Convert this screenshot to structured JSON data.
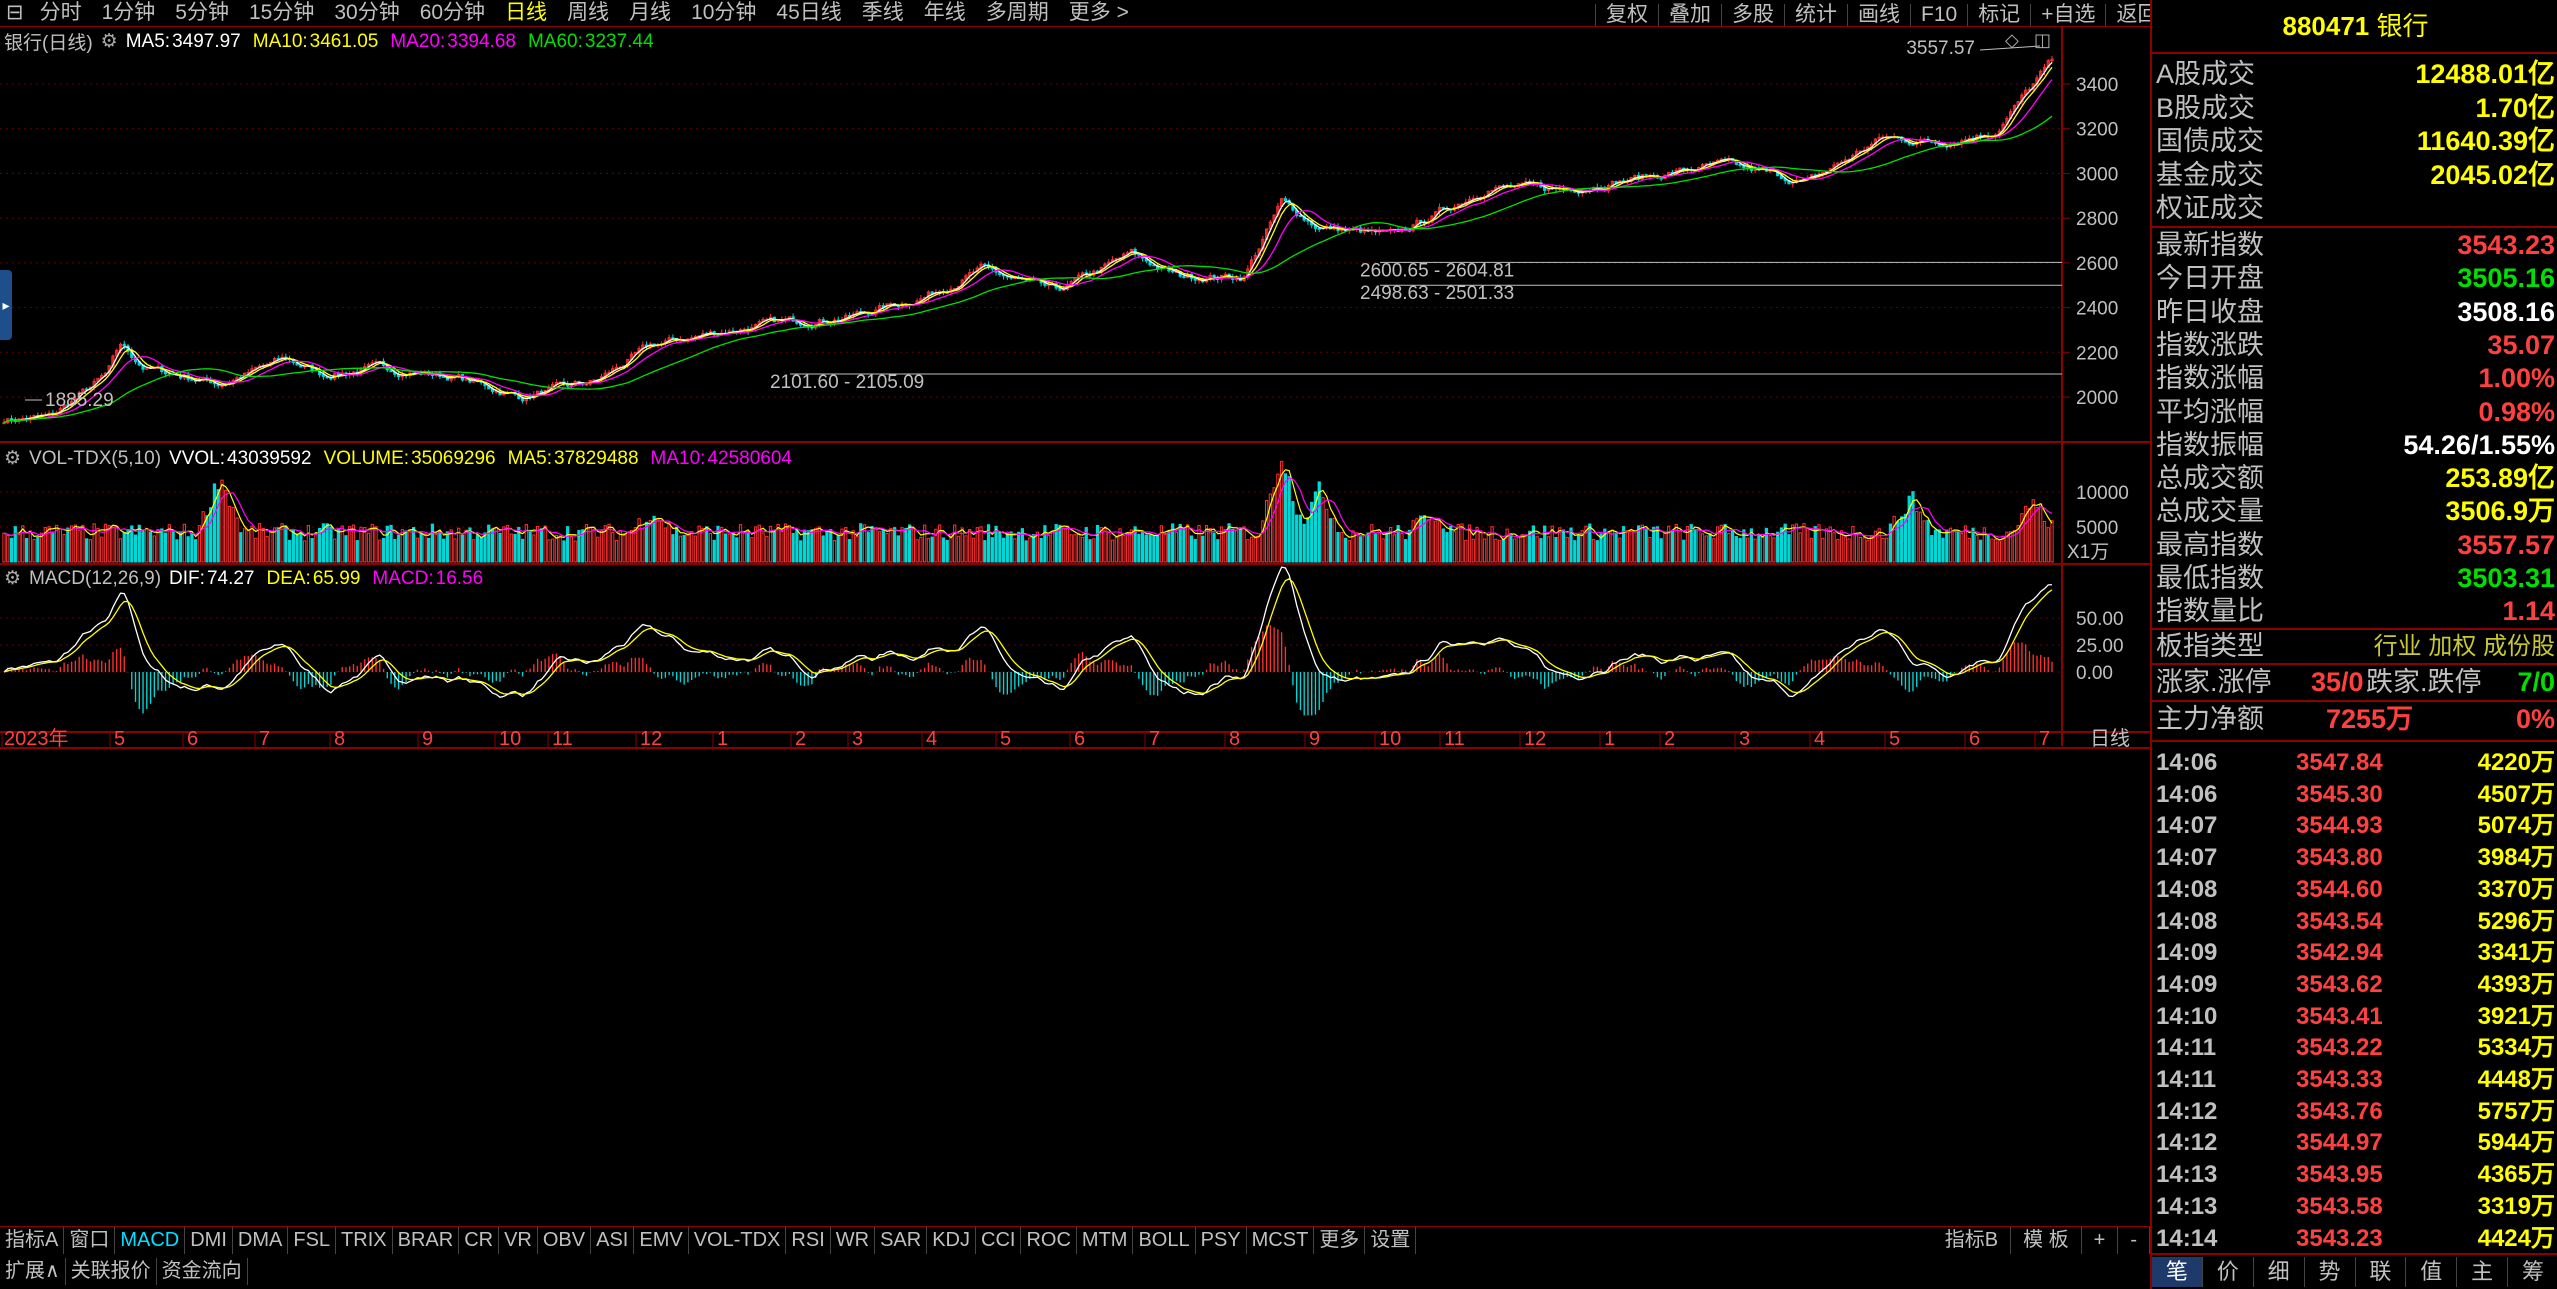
{
  "toolbar": {
    "timeframes": [
      "分时",
      "1分钟",
      "5分钟",
      "15分钟",
      "30分钟",
      "60分钟",
      "日线",
      "周线",
      "月线",
      "10分钟",
      "45日线",
      "季线",
      "年线",
      "多周期",
      "更多 >"
    ],
    "active_index": 6,
    "right_buttons": [
      "复权",
      "叠加",
      "多股",
      "统计",
      "画线",
      "F10",
      "标记",
      "+自选",
      "返回"
    ]
  },
  "main_chart": {
    "title": "银行(日线)",
    "ma": [
      {
        "label": "MA5:",
        "value": "3497.97",
        "color": "#ffffff"
      },
      {
        "label": "MA10:",
        "value": "3461.05",
        "color": "#ffff00"
      },
      {
        "label": "MA20:",
        "value": "3394.68",
        "color": "#ff00ff"
      },
      {
        "label": "MA60:",
        "value": "3237.44",
        "color": "#00e000"
      }
    ],
    "y_ticks": [
      "3400",
      "3200",
      "3000",
      "2800",
      "2600",
      "2400",
      "2200",
      "2000"
    ],
    "y_values": [
      3400,
      3200,
      3000,
      2800,
      2600,
      2400,
      2200,
      2000
    ],
    "high_label": "3557.57",
    "low_label": "1885.29",
    "zones": [
      "2600.65 - 2604.81",
      "2498.63 - 2501.33",
      "2101.60 - 2105.09"
    ]
  },
  "vol_chart": {
    "title": "VOL-TDX(5,10)",
    "items": [
      {
        "label": "VVOL:",
        "value": "43039592",
        "color": "#ffffff"
      },
      {
        "label": "VOLUME:",
        "value": "35069296",
        "color": "#ffff00"
      },
      {
        "label": "MA5:",
        "value": "37829488",
        "color": "#ffff00"
      },
      {
        "label": "MA10:",
        "value": "42580604",
        "color": "#ff00ff"
      }
    ],
    "y_ticks": [
      "10000",
      "5000"
    ],
    "unit": "X1万"
  },
  "macd_chart": {
    "title": "MACD(12,26,9)",
    "items": [
      {
        "label": "DIF:",
        "value": "74.27",
        "color": "#ffffff"
      },
      {
        "label": "DEA:",
        "value": "65.99",
        "color": "#ffff00"
      },
      {
        "label": "MACD:",
        "value": "16.56",
        "color": "#ff00ff"
      }
    ],
    "y_ticks": [
      "50.00",
      "25.00",
      "0.00"
    ]
  },
  "x_axis": {
    "labels": [
      "2023年",
      "5",
      "6",
      "7",
      "8",
      "9",
      "10",
      "11",
      "12",
      "1",
      "2",
      "3",
      "4",
      "5",
      "6",
      "7",
      "8",
      "9",
      "10",
      "11",
      "12",
      "1",
      "2",
      "3",
      "4",
      "5",
      "6",
      "7"
    ],
    "period": "日线"
  },
  "indicator_tabs": [
    "指标A",
    "窗口",
    "MACD",
    "DMI",
    "DMA",
    "FSL",
    "TRIX",
    "BRAR",
    "CR",
    "VR",
    "OBV",
    "ASI",
    "EMV",
    "VOL-TDX",
    "RSI",
    "WR",
    "SAR",
    "KDJ",
    "CCI",
    "ROC",
    "MTM",
    "BOLL",
    "PSY",
    "MCST",
    "更多",
    "设置"
  ],
  "indicator_active": 2,
  "indicator_right": [
    "指标B",
    "模 板",
    "+",
    "-"
  ],
  "ext_bar": [
    "扩展∧",
    "关联报价",
    "资金流向"
  ],
  "panel": {
    "code": "880471",
    "name": "银行",
    "turnover": [
      {
        "k": "A股成交",
        "v": "12488.01亿",
        "c": "#ffff00"
      },
      {
        "k": "B股成交",
        "v": "1.70亿",
        "c": "#ffff00"
      },
      {
        "k": "国债成交",
        "v": "11640.39亿",
        "c": "#ffff00"
      },
      {
        "k": "基金成交",
        "v": "2045.02亿",
        "c": "#ffff00"
      },
      {
        "k": "权证成交",
        "v": "",
        "c": "#ffff00"
      }
    ],
    "stats": [
      {
        "k": "最新指数",
        "v": "3543.23",
        "c": "#ff4040"
      },
      {
        "k": "今日开盘",
        "v": "3505.16",
        "c": "#00e000"
      },
      {
        "k": "昨日收盘",
        "v": "3508.16",
        "c": "#ffffff"
      },
      {
        "k": "指数涨跌",
        "v": "35.07",
        "c": "#ff4040"
      },
      {
        "k": "指数涨幅",
        "v": "1.00%",
        "c": "#ff4040"
      },
      {
        "k": "平均涨幅",
        "v": "0.98%",
        "c": "#ff4040"
      },
      {
        "k": "指数振幅",
        "v": "54.26/1.55%",
        "c": "#ffffff"
      },
      {
        "k": "总成交额",
        "v": "253.89亿",
        "c": "#ffff00"
      },
      {
        "k": "总成交量",
        "v": "3506.9万",
        "c": "#ffff00"
      },
      {
        "k": "最高指数",
        "v": "3557.57",
        "c": "#ff4040"
      },
      {
        "k": "最低指数",
        "v": "3503.31",
        "c": "#00e000"
      },
      {
        "k": "指数量比",
        "v": "1.14",
        "c": "#ff4040"
      }
    ],
    "board_type": {
      "k": "板指类型",
      "v": "行业 加权 成份股"
    },
    "updown": {
      "k1": "涨家.涨停",
      "v1": "35/0",
      "k2": "跌家.跌停",
      "v2": "7/0"
    },
    "main_flow": {
      "k": "主力净额",
      "v": "7255万",
      "pct": "0%"
    },
    "ticks": [
      {
        "t": "14:06",
        "p": "3547.84",
        "q": "4220万"
      },
      {
        "t": "14:06",
        "p": "3545.30",
        "q": "4507万"
      },
      {
        "t": "14:07",
        "p": "3544.93",
        "q": "5074万"
      },
      {
        "t": "14:07",
        "p": "3543.80",
        "q": "3984万"
      },
      {
        "t": "14:08",
        "p": "3544.60",
        "q": "3370万"
      },
      {
        "t": "14:08",
        "p": "3543.54",
        "q": "5296万"
      },
      {
        "t": "14:09",
        "p": "3542.94",
        "q": "3341万"
      },
      {
        "t": "14:09",
        "p": "3543.62",
        "q": "4393万"
      },
      {
        "t": "14:10",
        "p": "3543.41",
        "q": "3921万"
      },
      {
        "t": "14:11",
        "p": "3543.22",
        "q": "5334万"
      },
      {
        "t": "14:11",
        "p": "3543.33",
        "q": "4448万"
      },
      {
        "t": "14:12",
        "p": "3543.76",
        "q": "5757万"
      },
      {
        "t": "14:12",
        "p": "3544.97",
        "q": "5944万"
      },
      {
        "t": "14:13",
        "p": "3543.95",
        "q": "4365万"
      },
      {
        "t": "14:13",
        "p": "3543.58",
        "q": "3319万"
      },
      {
        "t": "14:14",
        "p": "3543.23",
        "q": "4424万"
      }
    ],
    "bottom_tabs": [
      "笔",
      "价",
      "细",
      "势",
      "联",
      "值",
      "主",
      "筹"
    ],
    "bottom_active": 0
  }
}
